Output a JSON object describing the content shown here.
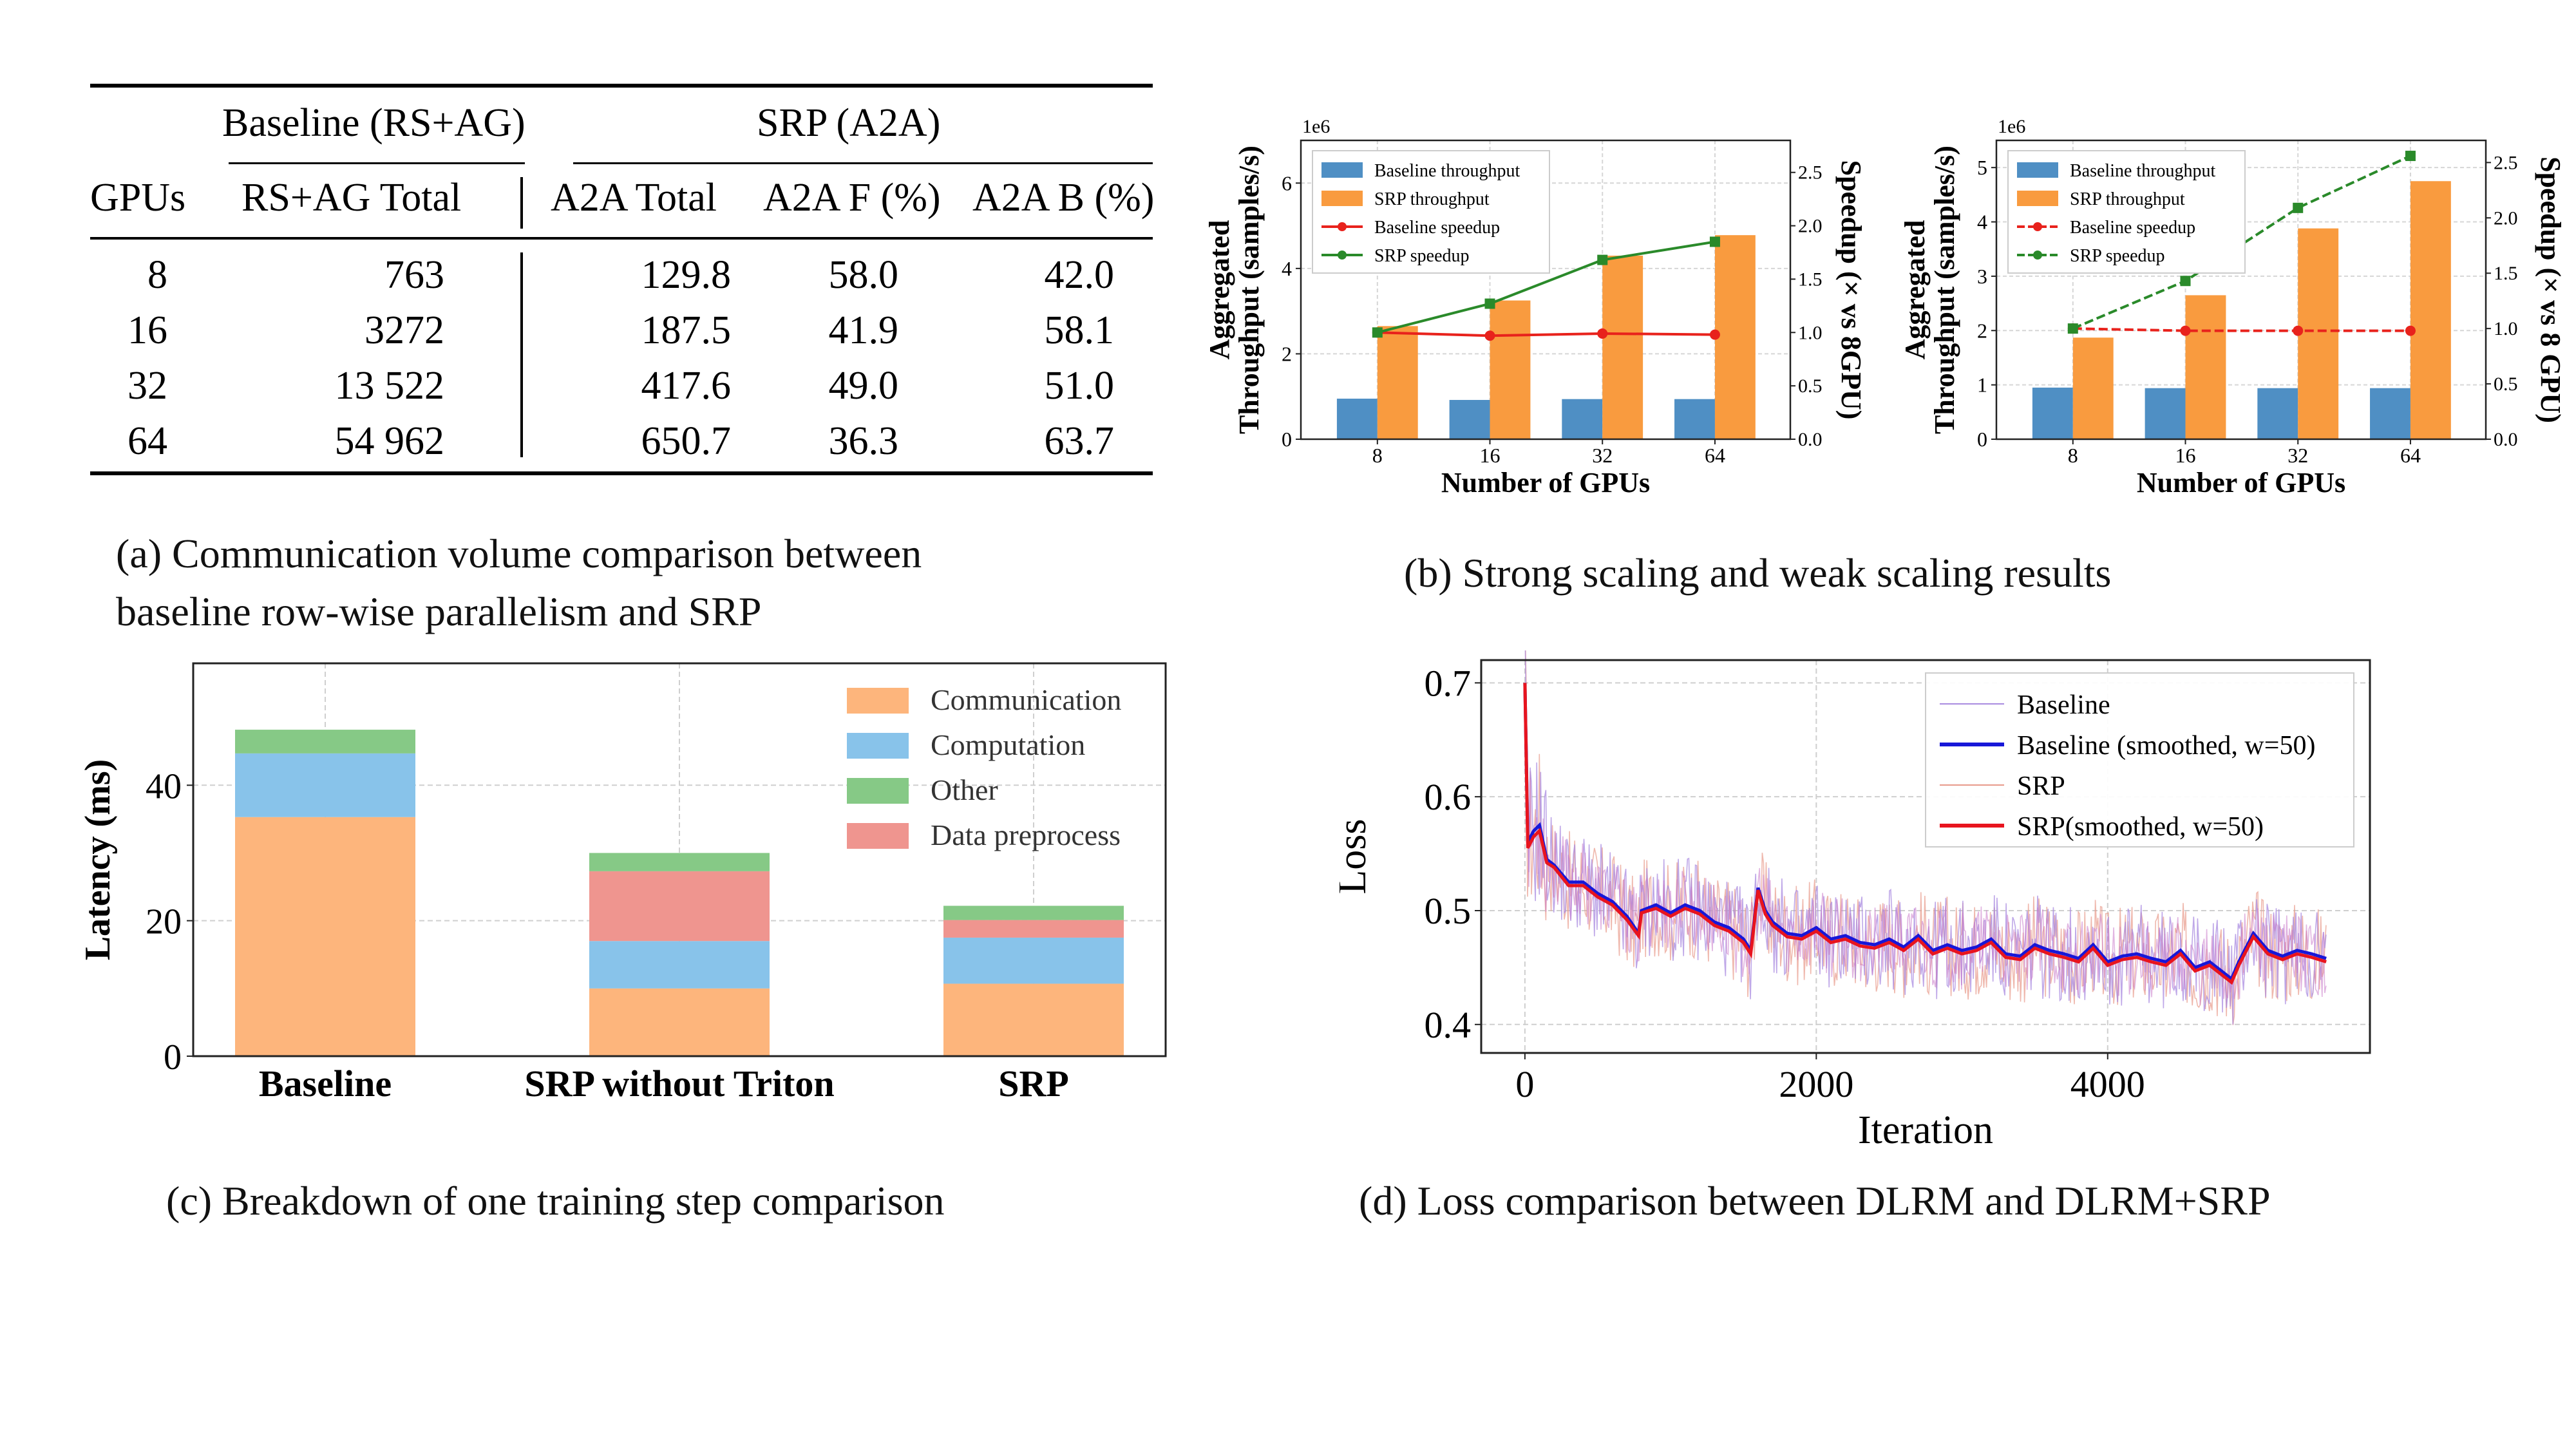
{
  "table": {
    "group_headers": {
      "baseline": "Baseline (RS+AG)",
      "srp": "SRP (A2A)"
    },
    "columns": [
      "GPUs",
      "RS+AG Total",
      "A2A Total",
      "A2A F (%)",
      "A2A B (%)"
    ],
    "rows": [
      [
        "8",
        "763",
        "129.8",
        "58.0",
        "42.0"
      ],
      [
        "16",
        "3272",
        "187.5",
        "41.9",
        "58.1"
      ],
      [
        "32",
        "13 522",
        "417.6",
        "49.0",
        "51.0"
      ],
      [
        "64",
        "54 962",
        "650.7",
        "36.3",
        "63.7"
      ]
    ]
  },
  "captions": {
    "a_line1": "(a) Communication volume comparison between",
    "a_line2": "baseline row-wise parallelism and SRP",
    "b": "(b) Strong scaling and weak scaling results",
    "c": "(c) Breakdown of one training step comparison",
    "d": "(d) Loss comparison between DLRM and DLRM+SRP"
  },
  "colors": {
    "blue": "#4f8fc4",
    "orange": "#f99b3f",
    "red": "#e8221c",
    "green": "#2a8a2a",
    "comm": "#fdb57c",
    "comp": "#88c3ea",
    "other": "#86c986",
    "prep": "#ef958f",
    "loss_base": "#1717d8",
    "loss_srp": "#e8141e",
    "loss_raw": "#c879c8"
  },
  "chart_data": [
    {
      "id": "b-strong",
      "type": "bar",
      "categories": [
        "8",
        "16",
        "32",
        "64"
      ],
      "series": [
        {
          "name": "Baseline throughput",
          "axis": "left",
          "values": [
            0.95,
            0.92,
            0.94,
            0.94
          ]
        },
        {
          "name": "SRP throughput",
          "axis": "left",
          "values": [
            2.65,
            3.25,
            4.3,
            4.78
          ]
        },
        {
          "name": "Baseline speedup",
          "axis": "right",
          "kind": "line",
          "values": [
            1.0,
            0.97,
            0.99,
            0.98
          ]
        },
        {
          "name": "SRP speedup",
          "axis": "right",
          "kind": "line",
          "values": [
            1.0,
            1.27,
            1.68,
            1.85
          ]
        }
      ],
      "ylabel": "Aggregated Throughput (samples/s)",
      "ylabel_line1": "Aggregated",
      "ylabel_line2": "Throughput (samples/s)",
      "y2label": "Speedup (× vs 8GPU)",
      "xlabel": "Number of GPUs",
      "yscale": "1e6",
      "ylim": [
        0,
        7
      ],
      "yticks": [
        "0",
        "2",
        "4",
        "6"
      ],
      "y2lim": [
        0,
        2.8
      ],
      "y2ticks": [
        "0.0",
        "0.5",
        "1.0",
        "1.5",
        "2.0",
        "2.5"
      ],
      "legend": "top-left"
    },
    {
      "id": "b-weak",
      "type": "bar",
      "categories": [
        "8",
        "16",
        "32",
        "64"
      ],
      "series": [
        {
          "name": "Baseline throughput",
          "axis": "left",
          "values": [
            0.95,
            0.94,
            0.94,
            0.94
          ]
        },
        {
          "name": "SRP throughput",
          "axis": "left",
          "values": [
            1.87,
            2.65,
            3.88,
            4.75
          ]
        },
        {
          "name": "Baseline speedup",
          "axis": "right",
          "kind": "line",
          "values": [
            1.0,
            0.98,
            0.98,
            0.98
          ]
        },
        {
          "name": "SRP speedup",
          "axis": "right",
          "kind": "line",
          "values": [
            1.0,
            1.43,
            2.09,
            2.56
          ]
        }
      ],
      "ylabel": "Aggregated Throughput (samples/s)",
      "ylabel_line1": "Aggregated",
      "ylabel_line2": "Throughput (samples/s)",
      "y2label": "Speedup (× vs 8 GPU)",
      "xlabel": "Number of GPUs",
      "yscale": "1e6",
      "ylim": [
        0,
        5.5
      ],
      "yticks": [
        "0",
        "1",
        "2",
        "3",
        "4",
        "5"
      ],
      "y2lim": [
        0,
        2.7
      ],
      "y2ticks": [
        "0.0",
        "0.5",
        "1.0",
        "1.5",
        "2.0",
        "2.5"
      ],
      "legend": "top-left"
    },
    {
      "id": "c-breakdown",
      "type": "bar",
      "stacked": true,
      "categories": [
        "Baseline",
        "SRP without Triton",
        "SRP"
      ],
      "series": [
        {
          "name": "Communication",
          "values": [
            35.3,
            10.0,
            10.7
          ]
        },
        {
          "name": "Computation",
          "values": [
            9.4,
            7.0,
            6.8
          ]
        },
        {
          "name": "Data preprocess",
          "values": [
            0,
            10.3,
            2.6
          ]
        },
        {
          "name": "Other",
          "values": [
            3.5,
            2.7,
            2.1
          ]
        }
      ],
      "legend_order": [
        "Communication",
        "Computation",
        "Other",
        "Data preprocess"
      ],
      "ylabel": "Latency (ms)",
      "ylim": [
        0,
        58
      ],
      "yticks": [
        "0",
        "20",
        "40"
      ],
      "legend": "top-right"
    },
    {
      "id": "d-loss",
      "type": "line",
      "xlabel": "Iteration",
      "ylabel": "Loss",
      "xlim": [
        -300,
        5800
      ],
      "ylim": [
        0.375,
        0.72
      ],
      "xticks": [
        "0",
        "2000",
        "4000"
      ],
      "yticks": [
        "0.4",
        "0.5",
        "0.6",
        "0.7"
      ],
      "series": [
        {
          "name": "Baseline"
        },
        {
          "name": "Baseline (smoothed, w=50)",
          "x": [
            0,
            20,
            60,
            100,
            150,
            200,
            300,
            400,
            500,
            600,
            700,
            780,
            800,
            900,
            1000,
            1100,
            1200,
            1300,
            1400,
            1500,
            1550,
            1600,
            1650,
            1700,
            1800,
            1900,
            2000,
            2100,
            2200,
            2300,
            2400,
            2500,
            2600,
            2700,
            2800,
            2900,
            3000,
            3100,
            3200,
            3300,
            3400,
            3500,
            3600,
            3700,
            3800,
            3900,
            4000,
            4100,
            4200,
            4300,
            4400,
            4500,
            4600,
            4700,
            4800,
            4850,
            4900,
            5000,
            5100,
            5200,
            5300,
            5400,
            5500
          ],
          "y": [
            0.7,
            0.56,
            0.57,
            0.575,
            0.545,
            0.54,
            0.525,
            0.525,
            0.515,
            0.508,
            0.495,
            0.48,
            0.5,
            0.505,
            0.498,
            0.505,
            0.5,
            0.49,
            0.485,
            0.475,
            0.465,
            0.52,
            0.5,
            0.49,
            0.48,
            0.478,
            0.485,
            0.475,
            0.478,
            0.472,
            0.47,
            0.475,
            0.468,
            0.478,
            0.465,
            0.47,
            0.465,
            0.468,
            0.475,
            0.462,
            0.46,
            0.47,
            0.465,
            0.462,
            0.458,
            0.47,
            0.455,
            0.46,
            0.462,
            0.458,
            0.455,
            0.465,
            0.45,
            0.455,
            0.445,
            0.44,
            0.455,
            0.48,
            0.465,
            0.46,
            0.465,
            0.462,
            0.458
          ]
        },
        {
          "name": "SRP"
        },
        {
          "name": "SRP(smoothed, w=50)",
          "x": [
            0,
            20,
            60,
            100,
            150,
            200,
            300,
            400,
            500,
            600,
            700,
            780,
            800,
            900,
            1000,
            1100,
            1200,
            1300,
            1400,
            1500,
            1550,
            1600,
            1650,
            1700,
            1800,
            1900,
            2000,
            2100,
            2200,
            2300,
            2400,
            2500,
            2600,
            2700,
            2800,
            2900,
            3000,
            3100,
            3200,
            3300,
            3400,
            3500,
            3600,
            3700,
            3800,
            3900,
            4000,
            4100,
            4200,
            4300,
            4400,
            4500,
            4600,
            4700,
            4800,
            4850,
            4900,
            5000,
            5100,
            5200,
            5300,
            5400,
            5500
          ],
          "y": [
            0.7,
            0.555,
            0.565,
            0.57,
            0.542,
            0.538,
            0.522,
            0.522,
            0.512,
            0.505,
            0.492,
            0.478,
            0.498,
            0.502,
            0.495,
            0.502,
            0.497,
            0.487,
            0.482,
            0.472,
            0.462,
            0.518,
            0.497,
            0.487,
            0.477,
            0.475,
            0.482,
            0.472,
            0.475,
            0.469,
            0.467,
            0.472,
            0.465,
            0.475,
            0.462,
            0.467,
            0.462,
            0.465,
            0.472,
            0.459,
            0.457,
            0.467,
            0.462,
            0.459,
            0.455,
            0.467,
            0.452,
            0.457,
            0.459,
            0.455,
            0.452,
            0.462,
            0.447,
            0.452,
            0.442,
            0.437,
            0.452,
            0.477,
            0.462,
            0.457,
            0.462,
            0.459,
            0.455
          ]
        }
      ],
      "legend": "top-right"
    }
  ]
}
